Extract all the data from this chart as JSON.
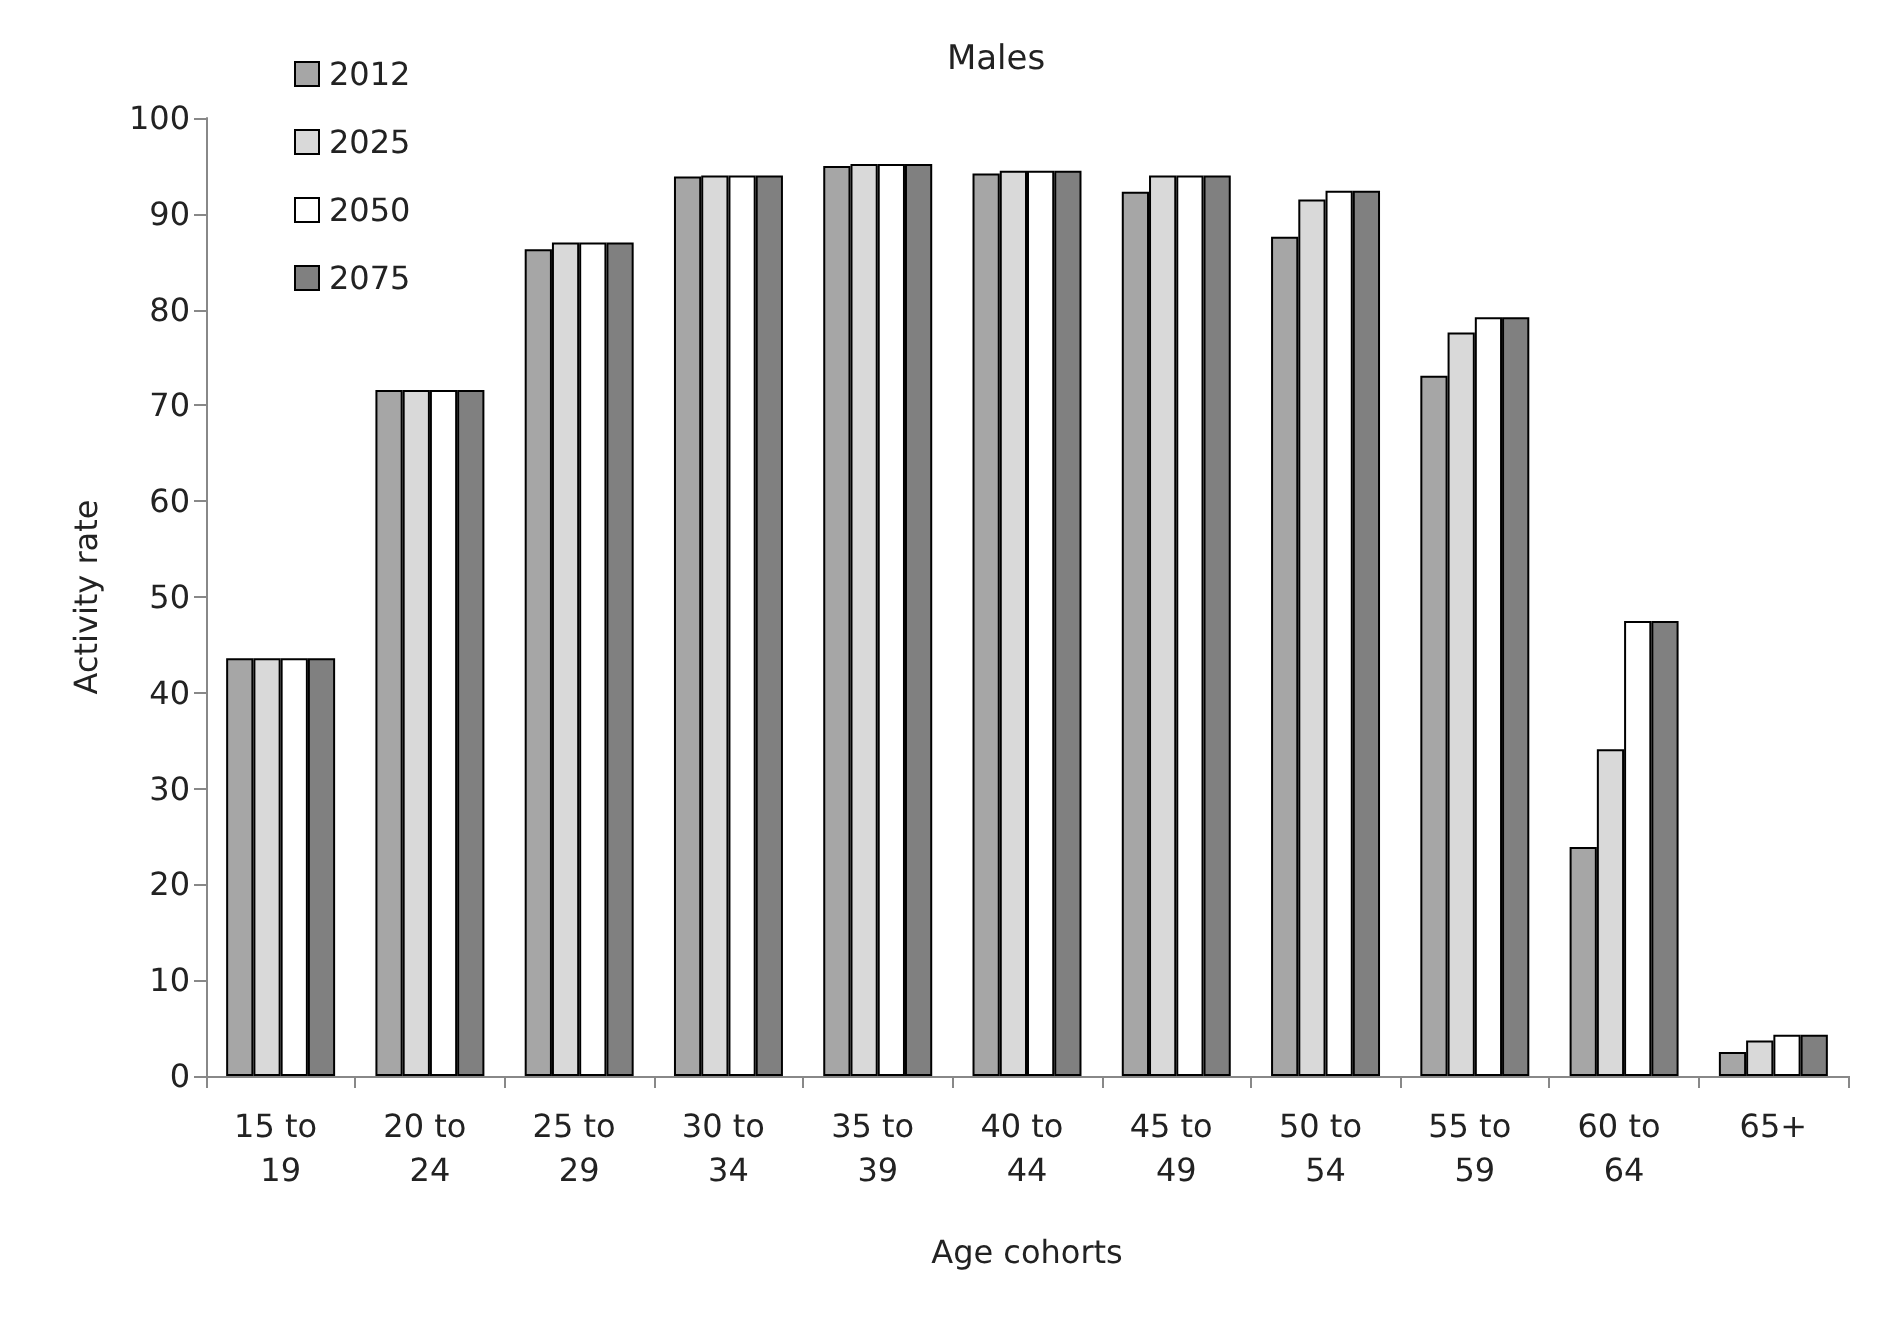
{
  "chart_data": {
    "type": "bar",
    "title": "Males",
    "xlabel": "Age cohorts",
    "ylabel": "Activity rate",
    "categories": [
      "15 to 19",
      "20 to 24",
      "25 to 29",
      "30 to 34",
      "35 to 39",
      "40 to 44",
      "45 to 49",
      "50 to 54",
      "55 to 59",
      "60 to 64",
      "65+"
    ],
    "series": [
      {
        "name": "2012",
        "color": "#a6a6a6",
        "values": [
          43.6,
          71.6,
          86.3,
          93.9,
          95.0,
          94.2,
          92.3,
          87.6,
          73.1,
          23.9,
          2.5
        ]
      },
      {
        "name": "2025",
        "color": "#d9d9d9",
        "values": [
          43.6,
          71.6,
          87.0,
          94.0,
          95.2,
          94.5,
          94.0,
          91.5,
          77.6,
          34.1,
          3.7
        ]
      },
      {
        "name": "2050",
        "color": "#ffffff",
        "values": [
          43.6,
          71.6,
          87.0,
          94.0,
          95.2,
          94.5,
          94.0,
          92.4,
          79.2,
          47.5,
          4.3
        ]
      },
      {
        "name": "2075",
        "color": "#808080",
        "values": [
          43.6,
          71.6,
          87.0,
          94.0,
          95.2,
          94.5,
          94.0,
          92.4,
          79.2,
          47.5,
          4.3
        ]
      }
    ],
    "ylim": [
      0,
      100
    ],
    "yticks": [
      0,
      10,
      20,
      30,
      40,
      50,
      60,
      70,
      80,
      90,
      100
    ],
    "grid": false,
    "legend": "top left"
  }
}
